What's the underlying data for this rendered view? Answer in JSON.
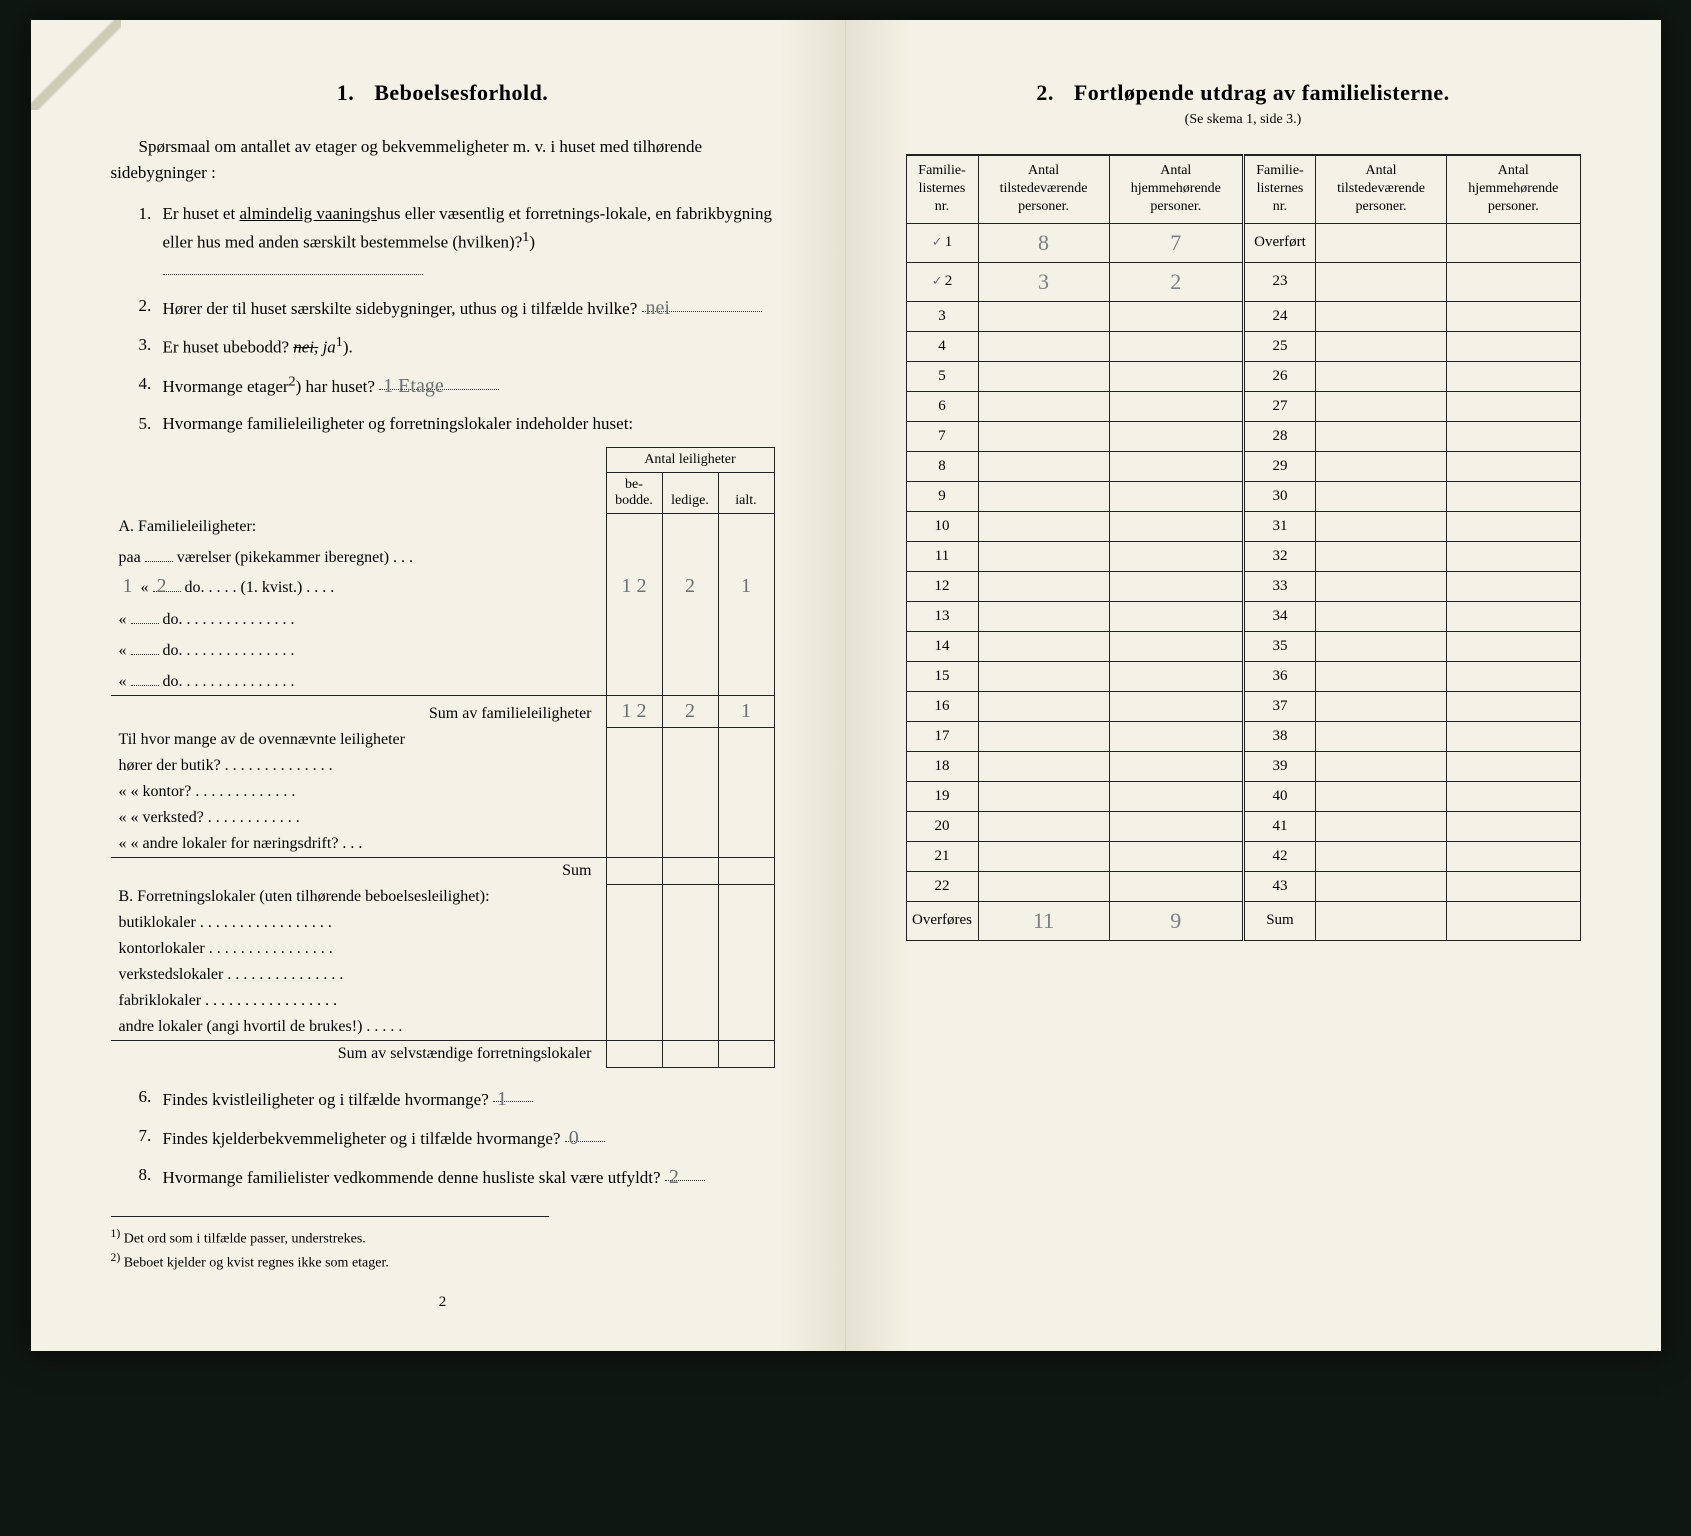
{
  "left": {
    "section_number": "1.",
    "section_title": "Beboelsesforhold.",
    "intro": "Spørsmaal om antallet av etager og bekvemmeligheter m. v. i huset med tilhørende sidebygninger :",
    "q1": {
      "num": "1.",
      "text_a": "Er huset et ",
      "word_under": "almindelig vaanings",
      "text_b": "hus eller væsentlig et forretnings-lokale, en fabrikbygning eller hus med anden særskilt bestemmelse (hvilken)?",
      "sup": "1",
      "answer": ""
    },
    "q2": {
      "num": "2.",
      "text": "Hører der til huset særskilte sidebygninger, uthus og i tilfælde hvilke?",
      "answer": "nei"
    },
    "q3": {
      "num": "3.",
      "text": "Er huset ubebodd?",
      "opt_struck": "nei,",
      "opt_keep": "ja",
      "sup": "1",
      "note": ")"
    },
    "q4": {
      "num": "4.",
      "text": "Hvormange etager",
      "sup": "2",
      "text2": ") har huset?",
      "answer": "1 Etage"
    },
    "q5": {
      "num": "5.",
      "text": "Hvormange familieleiligheter og forretningslokaler indeholder huset:"
    },
    "tbl_head": {
      "span": "Antal leiligheter",
      "c1": "be-bodde.",
      "c2": "ledige.",
      "c3": "ialt."
    },
    "A_head": "A. Familieleiligheter:",
    "A_rows": [
      {
        "label_a": "paa",
        "rooms": "",
        "label_b": "værelser (pikekammer iberegnet)  .  .  .",
        "v1": "",
        "v2": "",
        "v3": ""
      },
      {
        "prefix_hand": "1",
        "label_a": "«",
        "rooms": "2",
        "label_b": "do.      .  .  .  .  (1. kvist.)  .  .  .  .",
        "v1": "1 2",
        "v2": "2",
        "v3": "1"
      },
      {
        "label_a": "«",
        "rooms": "",
        "label_b": "do.      .  .  .  .  .  .  .  .  .  .  .  .  .  .",
        "v1": "",
        "v2": "",
        "v3": ""
      },
      {
        "label_a": "«",
        "rooms": "",
        "label_b": "do.      .  .  .  .  .  .  .  .  .  .  .  .  .  .",
        "v1": "",
        "v2": "",
        "v3": ""
      },
      {
        "label_a": "«",
        "rooms": "",
        "label_b": "do.      .  .  .  .  .  .  .  .  .  .  .  .  .  .",
        "v1": "",
        "v2": "",
        "v3": ""
      }
    ],
    "A_sum_label": "Sum av familieleiligheter",
    "A_sum": {
      "v1": "1 2",
      "v2": "2",
      "v3": "1"
    },
    "A_sub_intro": "Til hvor mange av de ovennævnte leiligheter",
    "A_sub": [
      "hører der butik?  .  .  .  .  .  .  .  .  .  .  .  .  .  .",
      "«     «   kontor?  .  .  .  .  .  .  .  .  .  .  .  .  .",
      "«     «   verksted?  .  .  .  .  .  .  .  .  .  .  .  .",
      "«     «   andre lokaler for næringsdrift?  .  .  ."
    ],
    "A_sub_sum": "Sum",
    "B_head": "B. Forretningslokaler (uten tilhørende beboelsesleilighet):",
    "B_rows": [
      "butiklokaler  .  .  .  .  .  .  .  .  .  .  .  .  .  .  .  .  .",
      "kontorlokaler  .  .  .  .  .  .  .  .  .  .  .  .  .  .  .  .",
      "verkstedslokaler .  .  .  .  .  .  .  .  .  .  .  .  .  .  .",
      "fabriklokaler .  .  .  .  .  .  .  .  .  .  .  .  .  .  .  .  .",
      "andre lokaler (angi hvortil de brukes!)  .  .  .  .  ."
    ],
    "B_sum_label": "Sum av selvstændige forretningslokaler",
    "q6": {
      "num": "6.",
      "text": "Findes kvistleiligheter og i tilfælde hvormange?",
      "answer": "1"
    },
    "q7": {
      "num": "7.",
      "text": "Findes kjelderbekvemmeligheter og i tilfælde hvormange?",
      "answer": "0"
    },
    "q8": {
      "num": "8.",
      "text": "Hvormange familielister vedkommende denne husliste skal være utfyldt?",
      "answer": "2"
    },
    "fn1": {
      "mark": "1)",
      "text": "Det ord som i tilfælde passer, understrekes."
    },
    "fn2": {
      "mark": "2)",
      "text": "Beboet kjelder og kvist regnes ikke som etager."
    },
    "pagenum": "2"
  },
  "right": {
    "section_number": "2.",
    "section_title": "Fortløpende utdrag av familielisterne.",
    "subtitle": "(Se skema 1, side 3.)",
    "headers": {
      "c1": "Familie-listernes nr.",
      "c2": "Antal tilstedeværende personer.",
      "c3": "Antal hjemmehørende personer.",
      "c4": "Familie-listernes nr.",
      "c5": "Antal tilstedeværende personer.",
      "c6": "Antal hjemmehørende personer."
    },
    "rows": [
      {
        "nrL": "1",
        "tickL": "✓",
        "tL": "8",
        "hL": "7",
        "nrR": "Overført",
        "tR": "",
        "hR": ""
      },
      {
        "nrL": "2",
        "tickL": "✓",
        "tL": "3",
        "hL": "2",
        "nrR": "23",
        "tR": "",
        "hR": ""
      },
      {
        "nrL": "3",
        "tL": "",
        "hL": "",
        "nrR": "24",
        "tR": "",
        "hR": ""
      },
      {
        "nrL": "4",
        "tL": "",
        "hL": "",
        "nrR": "25",
        "tR": "",
        "hR": ""
      },
      {
        "nrL": "5",
        "tL": "",
        "hL": "",
        "nrR": "26",
        "tR": "",
        "hR": ""
      },
      {
        "nrL": "6",
        "tL": "",
        "hL": "",
        "nrR": "27",
        "tR": "",
        "hR": ""
      },
      {
        "nrL": "7",
        "tL": "",
        "hL": "",
        "nrR": "28",
        "tR": "",
        "hR": ""
      },
      {
        "nrL": "8",
        "tL": "",
        "hL": "",
        "nrR": "29",
        "tR": "",
        "hR": ""
      },
      {
        "nrL": "9",
        "tL": "",
        "hL": "",
        "nrR": "30",
        "tR": "",
        "hR": ""
      },
      {
        "nrL": "10",
        "tL": "",
        "hL": "",
        "nrR": "31",
        "tR": "",
        "hR": ""
      },
      {
        "nrL": "11",
        "tL": "",
        "hL": "",
        "nrR": "32",
        "tR": "",
        "hR": ""
      },
      {
        "nrL": "12",
        "tL": "",
        "hL": "",
        "nrR": "33",
        "tR": "",
        "hR": ""
      },
      {
        "nrL": "13",
        "tL": "",
        "hL": "",
        "nrR": "34",
        "tR": "",
        "hR": ""
      },
      {
        "nrL": "14",
        "tL": "",
        "hL": "",
        "nrR": "35",
        "tR": "",
        "hR": ""
      },
      {
        "nrL": "15",
        "tL": "",
        "hL": "",
        "nrR": "36",
        "tR": "",
        "hR": ""
      },
      {
        "nrL": "16",
        "tL": "",
        "hL": "",
        "nrR": "37",
        "tR": "",
        "hR": ""
      },
      {
        "nrL": "17",
        "tL": "",
        "hL": "",
        "nrR": "38",
        "tR": "",
        "hR": ""
      },
      {
        "nrL": "18",
        "tL": "",
        "hL": "",
        "nrR": "39",
        "tR": "",
        "hR": ""
      },
      {
        "nrL": "19",
        "tL": "",
        "hL": "",
        "nrR": "40",
        "tR": "",
        "hR": ""
      },
      {
        "nrL": "20",
        "tL": "",
        "hL": "",
        "nrR": "41",
        "tR": "",
        "hR": ""
      },
      {
        "nrL": "21",
        "tL": "",
        "hL": "",
        "nrR": "42",
        "tR": "",
        "hR": ""
      },
      {
        "nrL": "22",
        "tL": "",
        "hL": "",
        "nrR": "43",
        "tR": "",
        "hR": ""
      }
    ],
    "footer": {
      "labelL": "Overføres",
      "tL": "11",
      "hL": "9",
      "labelR": "Sum",
      "tR": "",
      "hR": ""
    }
  }
}
